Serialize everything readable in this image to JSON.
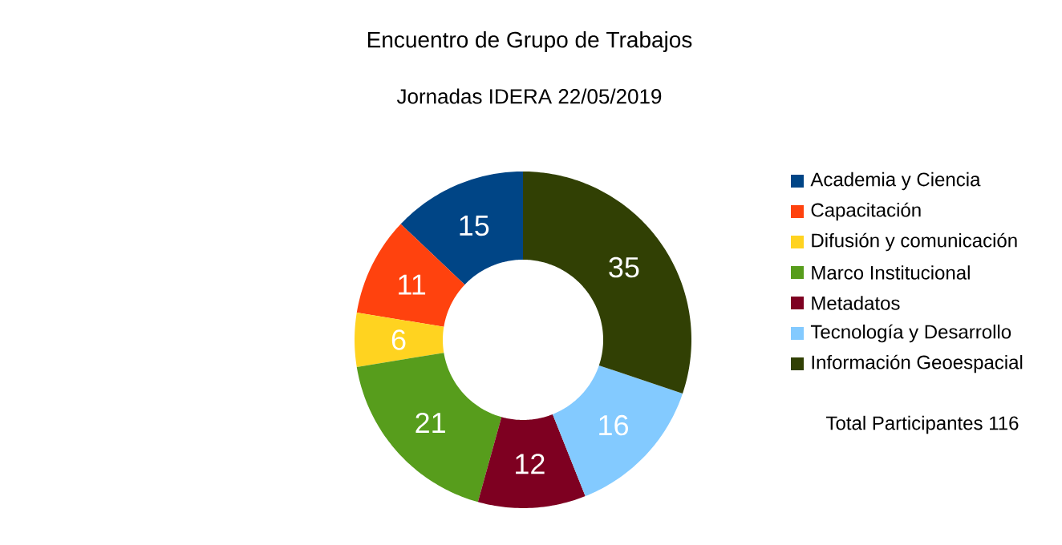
{
  "chart_data": {
    "type": "donut",
    "title": "Encuentro de Grupo de Trabajos",
    "subtitle": "Jornadas IDERA  22/05/2019",
    "categories": [
      "Academia y Ciencia",
      "Capacitación",
      "Difusión y comunicación",
      "Marco Institucional",
      "Metadatos",
      "Tecnología y Desarrollo",
      "Información Geoespacial"
    ],
    "values": [
      15,
      11,
      6,
      21,
      12,
      16,
      35
    ],
    "colors": [
      "#004586",
      "#ff420e",
      "#ffd320",
      "#579d1c",
      "#7e0021",
      "#83caff",
      "#314004"
    ],
    "data_labels": true,
    "legend": "right",
    "annotations": [
      "Total Participantes 116"
    ]
  }
}
